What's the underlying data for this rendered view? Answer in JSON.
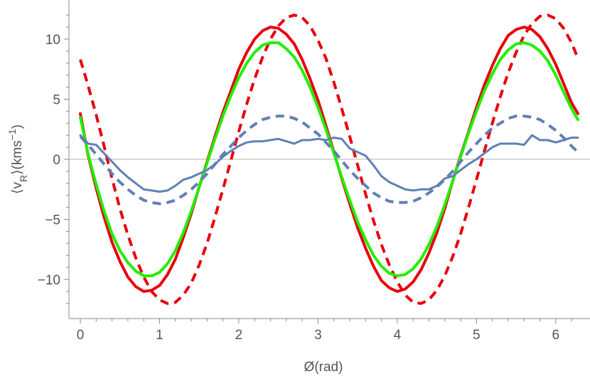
{
  "chart_data": {
    "type": "line",
    "xlabel": "Ø(rad)",
    "ylabel_parts": {
      "open": "⟨v",
      "sub": "R",
      "mid": "⟩(kms",
      "sup": "−1",
      "close": ")"
    },
    "xlim": [
      -0.1,
      6.35
    ],
    "ylim": [
      -13,
      13
    ],
    "x_ticks": [
      {
        "value": 0,
        "label": "0"
      },
      {
        "value": 1,
        "label": "1"
      },
      {
        "value": 2,
        "label": "2"
      },
      {
        "value": 3,
        "label": "3"
      },
      {
        "value": 4,
        "label": "4"
      },
      {
        "value": 5,
        "label": "5"
      },
      {
        "value": 6,
        "label": "6"
      }
    ],
    "y_ticks": [
      {
        "value": 10,
        "label": "10"
      },
      {
        "value": 5,
        "label": "5"
      },
      {
        "value": 0,
        "label": "0"
      },
      {
        "value": -5,
        "label": "−5"
      },
      {
        "value": -10,
        "label": "−10"
      }
    ],
    "zero_line": true,
    "grid": false,
    "series": [
      {
        "color": "#e8000b",
        "dash": "none",
        "width": 4,
        "x": [
          0.0,
          0.1,
          0.2,
          0.3,
          0.4,
          0.5,
          0.6,
          0.7,
          0.8,
          0.9,
          1.0,
          1.1,
          1.2,
          1.3,
          1.4,
          1.5,
          1.6,
          1.7,
          1.8,
          1.9,
          2.0,
          2.1,
          2.2,
          2.3,
          2.4,
          2.5,
          2.6,
          2.7,
          2.8,
          2.9,
          3.0,
          3.1,
          3.2,
          3.3,
          3.4,
          3.5,
          3.6,
          3.7,
          3.8,
          3.9,
          4.0,
          4.1,
          4.2,
          4.3,
          4.4,
          4.5,
          4.6,
          4.7,
          4.8,
          4.9,
          5.0,
          5.1,
          5.2,
          5.3,
          5.4,
          5.5,
          5.6,
          5.7,
          5.8,
          5.9,
          6.0,
          6.1,
          6.2,
          6.28
        ],
        "y": [
          3.8,
          0.3,
          -2.4,
          -4.8,
          -6.9,
          -8.5,
          -9.8,
          -10.6,
          -11.0,
          -10.9,
          -10.5,
          -9.6,
          -8.3,
          -6.5,
          -4.5,
          -2.3,
          -0.2,
          1.9,
          3.9,
          5.7,
          7.5,
          8.9,
          10.0,
          10.7,
          11.0,
          10.9,
          10.4,
          9.6,
          8.3,
          6.7,
          4.9,
          2.8,
          0.6,
          -1.6,
          -3.7,
          -5.7,
          -7.4,
          -8.9,
          -10.1,
          -10.7,
          -11.0,
          -10.8,
          -10.2,
          -9.2,
          -7.8,
          -6.1,
          -4.1,
          -1.8,
          0.3,
          2.3,
          4.3,
          6.2,
          7.8,
          9.2,
          10.3,
          10.8,
          11.0,
          10.8,
          10.2,
          9.2,
          7.9,
          6.3,
          4.7,
          3.8
        ]
      },
      {
        "color": "#e8000b",
        "dash": "12 8",
        "width": 4,
        "x": [
          0.0,
          0.1,
          0.2,
          0.3,
          0.4,
          0.5,
          0.6,
          0.7,
          0.8,
          0.9,
          1.0,
          1.1,
          1.2,
          1.3,
          1.4,
          1.5,
          1.6,
          1.7,
          1.8,
          1.9,
          2.0,
          2.1,
          2.2,
          2.3,
          2.4,
          2.5,
          2.6,
          2.7,
          2.8,
          2.9,
          3.0,
          3.1,
          3.2,
          3.3,
          3.4,
          3.5,
          3.6,
          3.7,
          3.8,
          3.9,
          4.0,
          4.1,
          4.2,
          4.3,
          4.4,
          4.5,
          4.6,
          4.7,
          4.8,
          4.9,
          5.0,
          5.1,
          5.2,
          5.3,
          5.4,
          5.5,
          5.6,
          5.7,
          5.8,
          5.9,
          6.0,
          6.1,
          6.2,
          6.28
        ],
        "y": [
          8.3,
          6.1,
          3.7,
          1.1,
          -1.6,
          -4.1,
          -6.3,
          -8.2,
          -9.8,
          -11.0,
          -11.7,
          -12.0,
          -11.9,
          -11.3,
          -10.3,
          -8.8,
          -7.0,
          -4.8,
          -2.5,
          -0.1,
          2.3,
          4.6,
          6.7,
          8.5,
          10.0,
          11.1,
          11.8,
          12.0,
          11.8,
          11.1,
          9.9,
          8.4,
          6.4,
          4.2,
          1.9,
          -0.5,
          -2.9,
          -5.1,
          -7.1,
          -8.8,
          -10.2,
          -11.3,
          -11.9,
          -12.0,
          -11.7,
          -10.9,
          -9.7,
          -8.1,
          -6.2,
          -4.0,
          -1.7,
          0.7,
          3.0,
          5.2,
          7.2,
          8.9,
          10.3,
          11.3,
          11.9,
          12.0,
          11.7,
          10.9,
          9.7,
          8.4
        ]
      },
      {
        "color": "#22ee00",
        "dash": "none",
        "width": 4,
        "x": [
          0.0,
          0.1,
          0.2,
          0.3,
          0.4,
          0.5,
          0.6,
          0.7,
          0.8,
          0.9,
          1.0,
          1.1,
          1.2,
          1.3,
          1.4,
          1.5,
          1.6,
          1.7,
          1.8,
          1.9,
          2.0,
          2.1,
          2.2,
          2.3,
          2.4,
          2.5,
          2.6,
          2.7,
          2.8,
          2.9,
          3.0,
          3.1,
          3.2,
          3.3,
          3.4,
          3.5,
          3.6,
          3.7,
          3.8,
          3.9,
          4.0,
          4.1,
          4.2,
          4.3,
          4.4,
          4.5,
          4.6,
          4.7,
          4.8,
          4.9,
          5.0,
          5.1,
          5.2,
          5.3,
          5.4,
          5.5,
          5.6,
          5.7,
          5.8,
          5.9,
          6.0,
          6.1,
          6.2,
          6.28
        ],
        "y": [
          3.5,
          0.4,
          -2.1,
          -4.3,
          -6.2,
          -7.6,
          -8.6,
          -9.3,
          -9.7,
          -9.7,
          -9.4,
          -8.7,
          -7.6,
          -6.1,
          -4.3,
          -2.3,
          -0.3,
          1.7,
          3.6,
          5.3,
          6.8,
          8.0,
          8.9,
          9.5,
          9.7,
          9.7,
          9.2,
          8.5,
          7.4,
          6.0,
          4.3,
          2.5,
          0.5,
          -1.5,
          -3.4,
          -5.2,
          -6.7,
          -8.0,
          -8.9,
          -9.5,
          -9.7,
          -9.6,
          -9.1,
          -8.3,
          -7.1,
          -5.6,
          -3.8,
          -1.8,
          0.2,
          2.2,
          4.0,
          5.7,
          7.1,
          8.3,
          9.1,
          9.6,
          9.7,
          9.5,
          9.0,
          8.2,
          7.0,
          5.6,
          4.2,
          3.3
        ]
      },
      {
        "color": "#5f80b4",
        "dash": "12 8",
        "width": 4,
        "x": [
          0.0,
          0.1,
          0.2,
          0.3,
          0.4,
          0.5,
          0.6,
          0.7,
          0.8,
          0.9,
          1.0,
          1.1,
          1.2,
          1.3,
          1.4,
          1.5,
          1.6,
          1.7,
          1.8,
          1.9,
          2.0,
          2.1,
          2.2,
          2.3,
          2.4,
          2.5,
          2.6,
          2.7,
          2.8,
          2.9,
          3.0,
          3.1,
          3.2,
          3.3,
          3.4,
          3.5,
          3.6,
          3.7,
          3.8,
          3.9,
          4.0,
          4.1,
          4.2,
          4.3,
          4.4,
          4.5,
          4.6,
          4.7,
          4.8,
          4.9,
          5.0,
          5.1,
          5.2,
          5.3,
          5.4,
          5.5,
          5.6,
          5.7,
          5.8,
          5.9,
          6.0,
          6.1,
          6.2,
          6.28
        ],
        "y": [
          1.9,
          1.2,
          0.4,
          -0.4,
          -1.2,
          -1.9,
          -2.5,
          -3.0,
          -3.4,
          -3.6,
          -3.7,
          -3.6,
          -3.4,
          -3.0,
          -2.5,
          -1.9,
          -1.2,
          -0.4,
          0.4,
          1.1,
          1.8,
          2.4,
          2.9,
          3.3,
          3.5,
          3.6,
          3.6,
          3.4,
          3.1,
          2.6,
          2.1,
          1.4,
          0.7,
          -0.1,
          -0.9,
          -1.6,
          -2.2,
          -2.8,
          -3.2,
          -3.5,
          -3.6,
          -3.6,
          -3.5,
          -3.2,
          -2.8,
          -2.3,
          -1.7,
          -1.0,
          -0.2,
          0.6,
          1.3,
          2.0,
          2.6,
          3.0,
          3.4,
          3.6,
          3.6,
          3.5,
          3.3,
          2.9,
          2.4,
          1.8,
          1.1,
          0.6
        ]
      },
      {
        "color": "#5f80b4",
        "dash": "none",
        "width": 3,
        "x": [
          0.0,
          0.1,
          0.2,
          0.3,
          0.4,
          0.5,
          0.6,
          0.7,
          0.8,
          0.9,
          1.0,
          1.1,
          1.2,
          1.3,
          1.4,
          1.5,
          1.6,
          1.7,
          1.8,
          1.9,
          2.0,
          2.1,
          2.2,
          2.3,
          2.4,
          2.5,
          2.6,
          2.7,
          2.8,
          2.9,
          3.0,
          3.1,
          3.2,
          3.3,
          3.4,
          3.5,
          3.6,
          3.7,
          3.8,
          3.9,
          4.0,
          4.1,
          4.2,
          4.3,
          4.4,
          4.5,
          4.6,
          4.7,
          4.8,
          4.9,
          5.0,
          5.1,
          5.2,
          5.3,
          5.4,
          5.5,
          5.6,
          5.7,
          5.8,
          5.9,
          6.0,
          6.1,
          6.2,
          6.28
        ],
        "y": [
          2.0,
          1.3,
          1.2,
          0.5,
          -0.2,
          -0.9,
          -1.5,
          -2.0,
          -2.5,
          -2.6,
          -2.7,
          -2.6,
          -2.2,
          -1.7,
          -1.5,
          -1.2,
          -0.9,
          -0.4,
          0.2,
          0.7,
          1.1,
          1.4,
          1.5,
          1.5,
          1.6,
          1.7,
          1.5,
          1.3,
          1.6,
          1.6,
          1.7,
          1.6,
          1.8,
          1.7,
          0.9,
          0.6,
          0.3,
          -0.5,
          -1.4,
          -1.9,
          -2.2,
          -2.5,
          -2.6,
          -2.5,
          -2.5,
          -2.2,
          -1.6,
          -1.4,
          -0.9,
          -0.4,
          0.0,
          0.5,
          1.0,
          1.3,
          1.3,
          1.3,
          1.2,
          2.0,
          1.6,
          1.6,
          1.4,
          1.6,
          1.8,
          1.8
        ]
      }
    ]
  }
}
